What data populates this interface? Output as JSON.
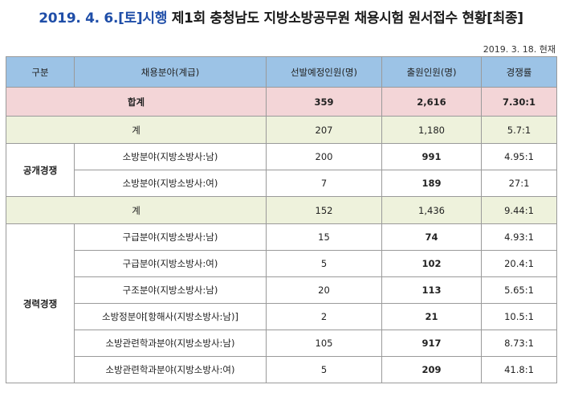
{
  "title": {
    "date_part": "2019. 4. 6.[토]시행",
    "main_part": "제1회 충청남도 지방소방공무원 채용시험 원서접수 현황[최종]"
  },
  "as_of": "2019. 3. 18. 현재",
  "header": {
    "col1": "구분",
    "col2": "채용분야(계급)",
    "col3": "선발예정인원(명)",
    "col4": "출원인원(명)",
    "col5": "경쟁률"
  },
  "total": {
    "label": "합계",
    "planned": "359",
    "applicants": "2,616",
    "ratio": "7.30:1"
  },
  "open": {
    "group_label": "공개경쟁",
    "subtotal": {
      "label": "계",
      "planned": "207",
      "applicants": "1,180",
      "ratio": "5.7:1"
    },
    "rows": [
      {
        "field": "소방분야(지방소방사:남)",
        "planned": "200",
        "applicants": "991",
        "ratio": "4.95:1"
      },
      {
        "field": "소방분야(지방소방사:여)",
        "planned": "7",
        "applicants": "189",
        "ratio": "27:1"
      }
    ]
  },
  "career": {
    "group_label": "경력경쟁",
    "subtotal": {
      "label": "계",
      "planned": "152",
      "applicants": "1,436",
      "ratio": "9.44:1"
    },
    "rows": [
      {
        "field": "구급분야(지방소방사:남)",
        "planned": "15",
        "applicants": "74",
        "ratio": "4.93:1"
      },
      {
        "field": "구급분야(지방소방사:여)",
        "planned": "5",
        "applicants": "102",
        "ratio": "20.4:1"
      },
      {
        "field": "구조분야(지방소방사:남)",
        "planned": "20",
        "applicants": "113",
        "ratio": "5.65:1"
      },
      {
        "field": "소방정분야[항해사(지방소방사:남)]",
        "planned": "2",
        "applicants": "21",
        "ratio": "10.5:1"
      },
      {
        "field": "소방관련학과분야(지방소방사:남)",
        "planned": "105",
        "applicants": "917",
        "ratio": "8.73:1"
      },
      {
        "field": "소방관련학과분야(지방소방사:여)",
        "planned": "5",
        "applicants": "209",
        "ratio": "41.8:1"
      }
    ]
  }
}
